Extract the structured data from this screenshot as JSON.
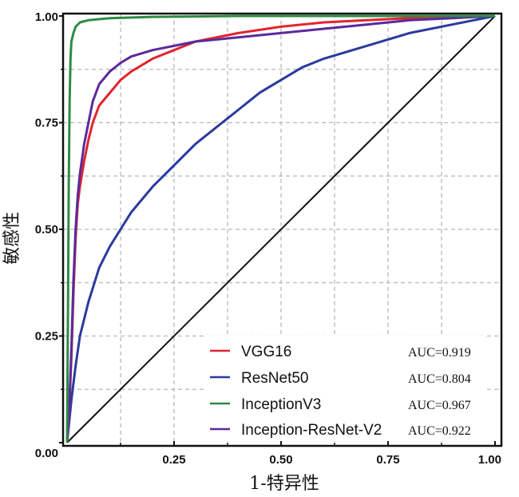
{
  "chart_data": {
    "type": "line",
    "title": "",
    "xlabel": "1-特异性",
    "ylabel": "敏感性",
    "xlim": [
      0,
      1
    ],
    "ylim": [
      0,
      1
    ],
    "grid": true,
    "legend_position": "bottom-right",
    "x_ticks": [
      "0.25",
      "0.50",
      "0.75",
      "1.00"
    ],
    "y_ticks": [
      "0.00",
      "0.25",
      "0.50",
      "0.75",
      "1.00"
    ],
    "reference_line": {
      "x": [
        0,
        1
      ],
      "y": [
        0,
        1
      ],
      "color": "#111111"
    },
    "series": [
      {
        "name": "VGG16",
        "auc_label": "AUC=0.919",
        "color": "#e0252f",
        "x": [
          0.0,
          0.005,
          0.01,
          0.015,
          0.02,
          0.025,
          0.03,
          0.04,
          0.05,
          0.06,
          0.075,
          0.1,
          0.125,
          0.15,
          0.2,
          0.25,
          0.3,
          0.4,
          0.5,
          0.6,
          0.7,
          0.8,
          0.9,
          1.0
        ],
        "y": [
          0.0,
          0.08,
          0.2,
          0.35,
          0.48,
          0.56,
          0.6,
          0.66,
          0.71,
          0.75,
          0.79,
          0.82,
          0.85,
          0.87,
          0.9,
          0.92,
          0.94,
          0.96,
          0.975,
          0.985,
          0.99,
          0.995,
          0.998,
          1.0
        ]
      },
      {
        "name": "ResNet50",
        "auc_label": "AUC=0.804",
        "color": "#2b3a9e",
        "x": [
          0.0,
          0.01,
          0.02,
          0.03,
          0.05,
          0.075,
          0.1,
          0.125,
          0.15,
          0.2,
          0.25,
          0.3,
          0.35,
          0.4,
          0.45,
          0.5,
          0.55,
          0.6,
          0.7,
          0.8,
          0.9,
          1.0
        ],
        "y": [
          0.0,
          0.1,
          0.18,
          0.25,
          0.33,
          0.41,
          0.46,
          0.5,
          0.54,
          0.6,
          0.65,
          0.7,
          0.74,
          0.78,
          0.82,
          0.85,
          0.88,
          0.9,
          0.93,
          0.96,
          0.98,
          1.0
        ]
      },
      {
        "name": "InceptionV3",
        "auc_label": "AUC=0.967",
        "color": "#2e8b43",
        "x": [
          0.0,
          0.002,
          0.004,
          0.006,
          0.008,
          0.01,
          0.015,
          0.02,
          0.03,
          0.05,
          0.1,
          0.2,
          0.4,
          0.7,
          1.0
        ],
        "y": [
          0.0,
          0.3,
          0.6,
          0.8,
          0.9,
          0.94,
          0.96,
          0.975,
          0.985,
          0.99,
          0.995,
          0.998,
          1.0,
          1.0,
          1.0
        ]
      },
      {
        "name": "Inception-ResNet-V2",
        "auc_label": "AUC=0.922",
        "color": "#5b2a9b",
        "x": [
          0.0,
          0.005,
          0.01,
          0.015,
          0.02,
          0.025,
          0.03,
          0.04,
          0.05,
          0.06,
          0.075,
          0.1,
          0.125,
          0.15,
          0.2,
          0.25,
          0.3,
          0.4,
          0.5,
          0.6,
          0.7,
          0.8,
          0.9,
          1.0
        ],
        "y": [
          0.0,
          0.08,
          0.22,
          0.38,
          0.5,
          0.58,
          0.63,
          0.7,
          0.75,
          0.8,
          0.84,
          0.87,
          0.89,
          0.905,
          0.92,
          0.93,
          0.94,
          0.95,
          0.96,
          0.97,
          0.98,
          0.99,
          0.995,
          1.0
        ]
      }
    ]
  }
}
